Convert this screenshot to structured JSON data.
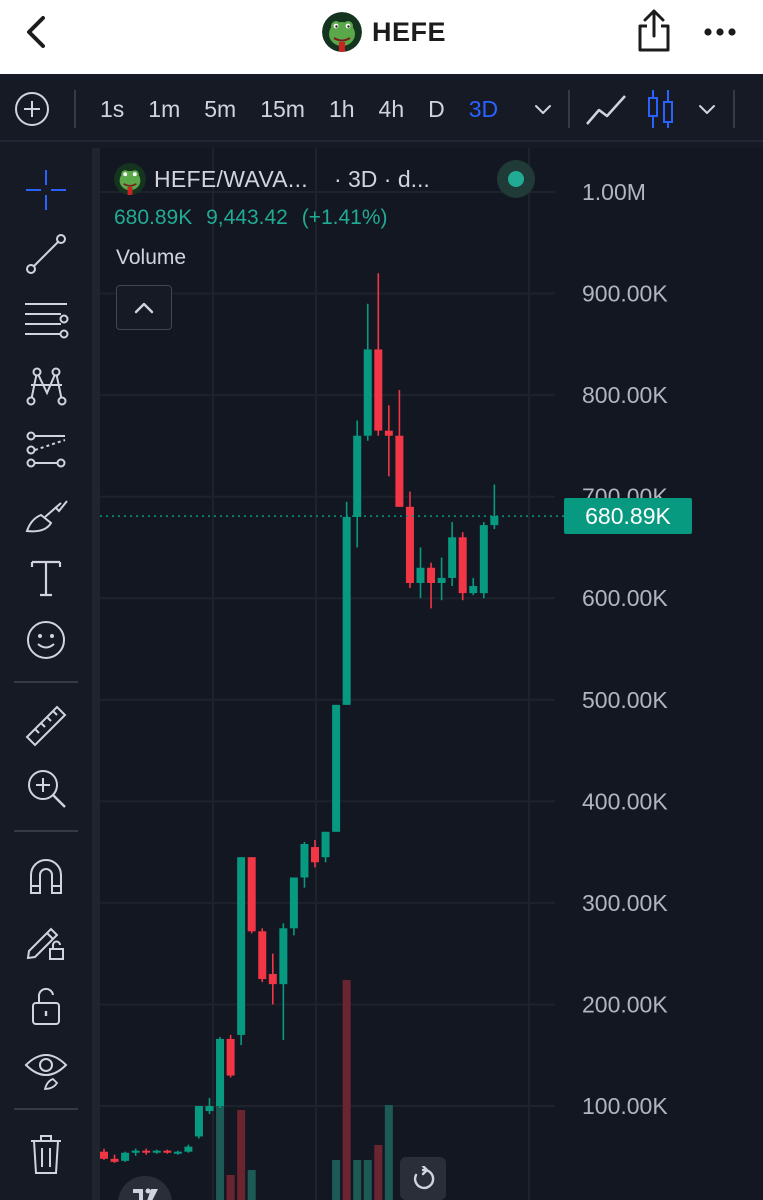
{
  "header": {
    "title": "HEFE",
    "back_icon": "chevron-left-icon",
    "share_icon": "share-icon",
    "more_icon": "more-horizontal-icon"
  },
  "toolbar": {
    "intervals": [
      {
        "label": "1s",
        "active": false
      },
      {
        "label": "1m",
        "active": false
      },
      {
        "label": "5m",
        "active": false
      },
      {
        "label": "15m",
        "active": false
      },
      {
        "label": "1h",
        "active": false
      },
      {
        "label": "4h",
        "active": false
      },
      {
        "label": "D",
        "active": false
      },
      {
        "label": "3D",
        "active": true
      }
    ]
  },
  "left_tools": [
    "crosshair-icon",
    "trend-line-icon",
    "fib-retracement-icon",
    "pattern-icon",
    "prediction-icon",
    "brush-icon",
    "text-icon",
    "emoji-icon",
    "ruler-icon",
    "zoom-in-icon",
    "magnet-icon",
    "lock-drawing-icon",
    "lock-icon",
    "eye-icon",
    "trash-icon"
  ],
  "symbol": {
    "name": "HEFE/WAVA...",
    "meta": "· 3D · d...",
    "last_close": "680.89K",
    "change": "9,443.42",
    "change_pct": "(+1.41%)"
  },
  "volume": {
    "label": "Volume"
  },
  "price_tag": "680.89K",
  "colors": {
    "up": "#089981",
    "down": "#f23645",
    "accent": "#2962ff",
    "background": "#131722"
  },
  "chart_data": {
    "type": "candlestick",
    "y_axis_labels": [
      "1.00M",
      "900.00K",
      "800.00K",
      "700.00K",
      "600.00K",
      "500.00K",
      "400.00K",
      "300.00K",
      "200.00K",
      "100.00K"
    ],
    "ylim": [
      52000,
      1040000
    ],
    "last_price": 680890,
    "candles": [
      {
        "o": 55000,
        "h": 58000,
        "l": 47000,
        "c": 48000
      },
      {
        "o": 48000,
        "h": 52000,
        "l": 44000,
        "c": 45000
      },
      {
        "o": 46000,
        "h": 55000,
        "l": 45000,
        "c": 54000
      },
      {
        "o": 54000,
        "h": 58000,
        "l": 51000,
        "c": 56000
      },
      {
        "o": 56000,
        "h": 58000,
        "l": 52000,
        "c": 55000
      },
      {
        "o": 55000,
        "h": 57000,
        "l": 53000,
        "c": 56000
      },
      {
        "o": 56000,
        "h": 57000,
        "l": 53000,
        "c": 54000
      },
      {
        "o": 54000,
        "h": 56000,
        "l": 52000,
        "c": 55000
      },
      {
        "o": 55000,
        "h": 62000,
        "l": 54000,
        "c": 60000
      },
      {
        "o": 70000,
        "h": 100000,
        "l": 68000,
        "c": 100000
      },
      {
        "o": 95000,
        "h": 108000,
        "l": 92000,
        "c": 100000
      },
      {
        "o": 100000,
        "h": 168000,
        "l": 98000,
        "c": 166000
      },
      {
        "o": 166000,
        "h": 170000,
        "l": 128000,
        "c": 130000
      },
      {
        "o": 170000,
        "h": 345000,
        "l": 160000,
        "c": 345000
      },
      {
        "o": 345000,
        "h": 345000,
        "l": 270000,
        "c": 272000
      },
      {
        "o": 272000,
        "h": 275000,
        "l": 222000,
        "c": 225000
      },
      {
        "o": 230000,
        "h": 250000,
        "l": 200000,
        "c": 220000
      },
      {
        "o": 220000,
        "h": 280000,
        "l": 165000,
        "c": 275000
      },
      {
        "o": 275000,
        "h": 325000,
        "l": 268000,
        "c": 325000
      },
      {
        "o": 325000,
        "h": 360000,
        "l": 315000,
        "c": 358000
      },
      {
        "o": 355000,
        "h": 362000,
        "l": 335000,
        "c": 340000
      },
      {
        "o": 345000,
        "h": 370000,
        "l": 340000,
        "c": 370000
      },
      {
        "o": 370000,
        "h": 495000,
        "l": 370000,
        "c": 495000
      },
      {
        "o": 495000,
        "h": 695000,
        "l": 495000,
        "c": 680000
      },
      {
        "o": 680000,
        "h": 775000,
        "l": 650000,
        "c": 760000
      },
      {
        "o": 760000,
        "h": 890000,
        "l": 755000,
        "c": 845000
      },
      {
        "o": 845000,
        "h": 920000,
        "l": 760000,
        "c": 765000
      },
      {
        "o": 765000,
        "h": 790000,
        "l": 720000,
        "c": 760000
      },
      {
        "o": 760000,
        "h": 805000,
        "l": 690000,
        "c": 690000
      },
      {
        "o": 690000,
        "h": 705000,
        "l": 610000,
        "c": 615000
      },
      {
        "o": 615000,
        "h": 650000,
        "l": 600000,
        "c": 630000
      },
      {
        "o": 630000,
        "h": 635000,
        "l": 590000,
        "c": 615000
      },
      {
        "o": 615000,
        "h": 640000,
        "l": 598000,
        "c": 620000
      },
      {
        "o": 620000,
        "h": 675000,
        "l": 612000,
        "c": 660000
      },
      {
        "o": 660000,
        "h": 665000,
        "l": 598000,
        "c": 605000
      },
      {
        "o": 605000,
        "h": 620000,
        "l": 603000,
        "c": 612000
      },
      {
        "o": 605000,
        "h": 675000,
        "l": 600000,
        "c": 672000
      },
      {
        "o": 672000,
        "h": 712000,
        "l": 668000,
        "c": 680890
      }
    ],
    "volume_visible": [
      {
        "up": false
      },
      {
        "up": false
      },
      {
        "up": true
      },
      {
        "up": false
      },
      {
        "up": true
      },
      {
        "up": true
      },
      {
        "up": false
      },
      {
        "up": true
      },
      {
        "up": true
      },
      {
        "up": true
      }
    ]
  }
}
